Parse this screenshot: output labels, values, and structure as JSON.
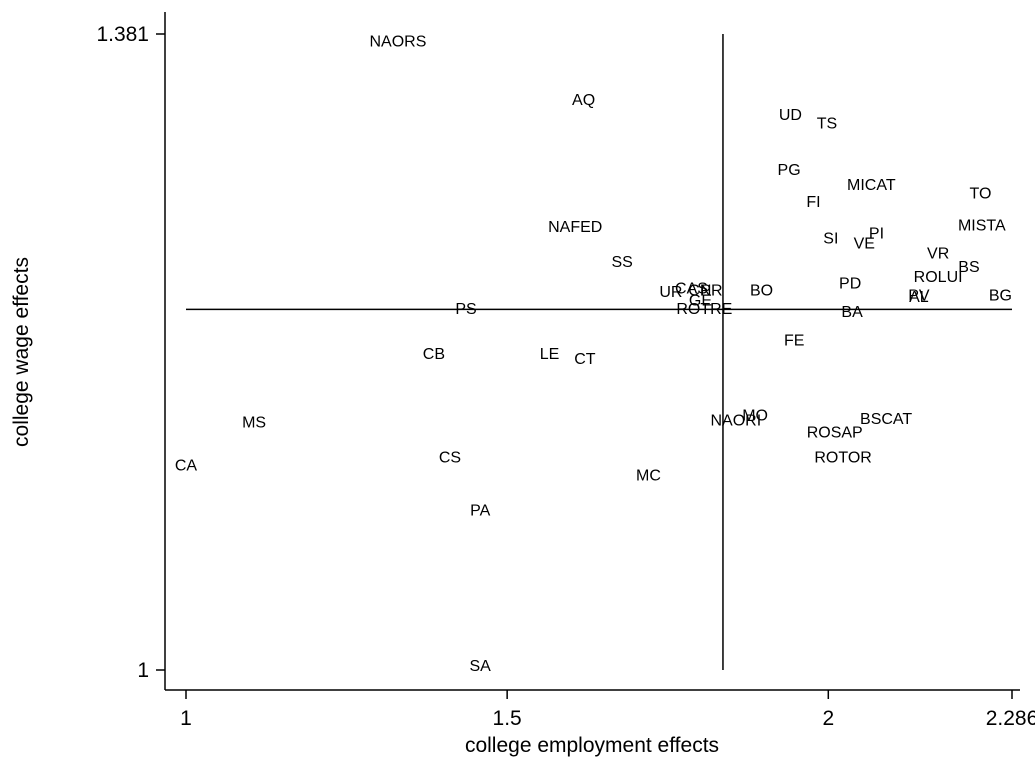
{
  "chart_data": {
    "type": "scatter",
    "title": "",
    "xlabel": "college employment effects",
    "ylabel": "college wage effects",
    "xlim": [
      1,
      2.286
    ],
    "ylim": [
      1,
      1.381
    ],
    "x_ticks": [
      {
        "value": 1,
        "label": "1"
      },
      {
        "value": 1.5,
        "label": "1.5"
      },
      {
        "value": 2,
        "label": "2"
      },
      {
        "value": 2.286,
        "label": "2.286"
      }
    ],
    "y_ticks": [
      {
        "value": 1,
        "label": "1"
      },
      {
        "value": 1.381,
        "label": "1.381"
      }
    ],
    "reference_lines": {
      "vertical_x": 1.836,
      "horizontal_y": 1.216
    },
    "grid": false,
    "legend": "none",
    "marker": "label-only",
    "points": [
      {
        "label": "NAORS",
        "x": 1.33,
        "y": 1.377
      },
      {
        "label": "AQ",
        "x": 1.619,
        "y": 1.342
      },
      {
        "label": "UD",
        "x": 1.941,
        "y": 1.333
      },
      {
        "label": "TS",
        "x": 1.998,
        "y": 1.328
      },
      {
        "label": "PG",
        "x": 1.939,
        "y": 1.3
      },
      {
        "label": "MICAT",
        "x": 2.067,
        "y": 1.291
      },
      {
        "label": "TO",
        "x": 2.237,
        "y": 1.286
      },
      {
        "label": "FI",
        "x": 1.977,
        "y": 1.281
      },
      {
        "label": "NAFED",
        "x": 1.606,
        "y": 1.266
      },
      {
        "label": "MISTA",
        "x": 2.239,
        "y": 1.267
      },
      {
        "label": "PI",
        "x": 2.075,
        "y": 1.262
      },
      {
        "label": "SI",
        "x": 2.004,
        "y": 1.259
      },
      {
        "label": "VE",
        "x": 2.056,
        "y": 1.256
      },
      {
        "label": "SS",
        "x": 1.679,
        "y": 1.245
      },
      {
        "label": "VR",
        "x": 2.171,
        "y": 1.25
      },
      {
        "label": "BS",
        "x": 2.219,
        "y": 1.242
      },
      {
        "label": "ROLUI",
        "x": 2.171,
        "y": 1.236
      },
      {
        "label": "PD",
        "x": 2.034,
        "y": 1.232
      },
      {
        "label": "BO",
        "x": 1.896,
        "y": 1.228
      },
      {
        "label": "BG",
        "x": 2.268,
        "y": 1.225
      },
      {
        "label": "CAS",
        "x": 1.787,
        "y": 1.229
      },
      {
        "label": "UR",
        "x": 1.755,
        "y": 1.227
      },
      {
        "label": "CN",
        "x": 1.8,
        "y": 1.228
      },
      {
        "label": "PR",
        "x": 1.818,
        "y": 1.228
      },
      {
        "label": "PV",
        "x": 2.141,
        "y": 1.225
      },
      {
        "label": "AL",
        "x": 2.141,
        "y": 1.224
      },
      {
        "label": "GE",
        "x": 1.801,
        "y": 1.222
      },
      {
        "label": "ROTRE",
        "x": 1.807,
        "y": 1.217
      },
      {
        "label": "PS",
        "x": 1.436,
        "y": 1.217
      },
      {
        "label": "BA",
        "x": 2.037,
        "y": 1.215
      },
      {
        "label": "FE",
        "x": 1.947,
        "y": 1.198
      },
      {
        "label": "CB",
        "x": 1.386,
        "y": 1.19
      },
      {
        "label": "LE",
        "x": 1.566,
        "y": 1.19
      },
      {
        "label": "CT",
        "x": 1.621,
        "y": 1.187
      },
      {
        "label": "MO",
        "x": 1.886,
        "y": 1.153
      },
      {
        "label": "NAORI",
        "x": 1.856,
        "y": 1.15
      },
      {
        "label": "BSCAT",
        "x": 2.09,
        "y": 1.151
      },
      {
        "label": "MS",
        "x": 1.106,
        "y": 1.149
      },
      {
        "label": "ROSAP",
        "x": 2.01,
        "y": 1.143
      },
      {
        "label": "CS",
        "x": 1.411,
        "y": 1.128
      },
      {
        "label": "ROTOR",
        "x": 2.023,
        "y": 1.128
      },
      {
        "label": "CA",
        "x": 1.0,
        "y": 1.123
      },
      {
        "label": "MC",
        "x": 1.72,
        "y": 1.117
      },
      {
        "label": "PA",
        "x": 1.458,
        "y": 1.096
      },
      {
        "label": "SA",
        "x": 1.458,
        "y": 1.003
      }
    ]
  }
}
